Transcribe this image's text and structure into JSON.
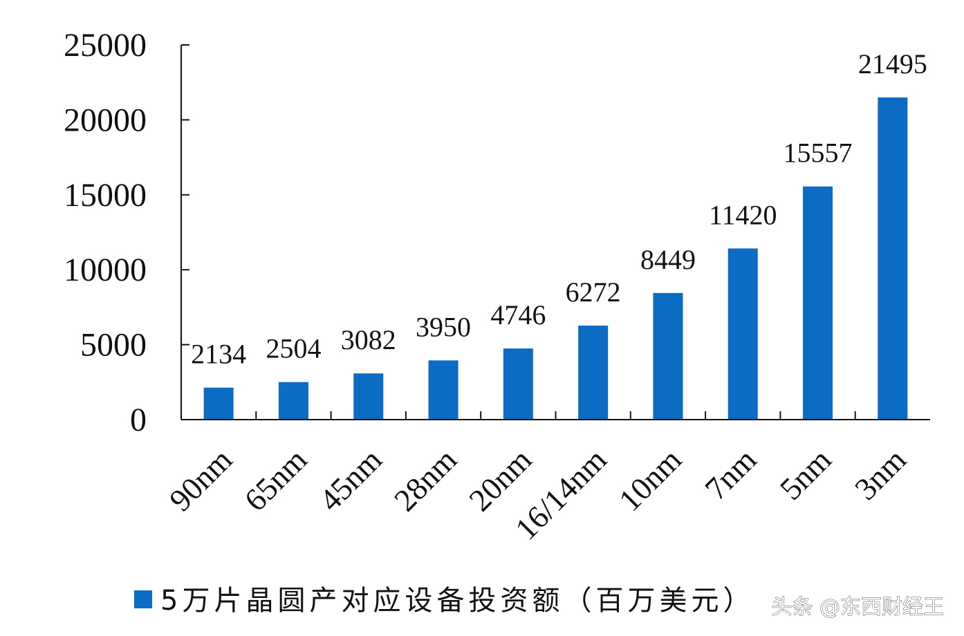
{
  "chart_data": {
    "type": "bar",
    "categories": [
      "90nm",
      "65nm",
      "45nm",
      "28nm",
      "20nm",
      "16/14nm",
      "10nm",
      "7nm",
      "5nm",
      "3nm"
    ],
    "series": [
      {
        "name": "5万片晶圆产对应设备投资额（百万美元）",
        "values": [
          2134,
          2504,
          3082,
          3950,
          4746,
          6272,
          8449,
          11420,
          15557,
          21495
        ]
      }
    ],
    "ylim": [
      0,
      25000
    ],
    "yticks": [
      0,
      5000,
      10000,
      15000,
      20000,
      25000
    ],
    "data_labels": true,
    "legend_position": "bottom",
    "grid": false,
    "bar_color": "#0A6CC2"
  },
  "watermark": "头条 @东西财经王"
}
